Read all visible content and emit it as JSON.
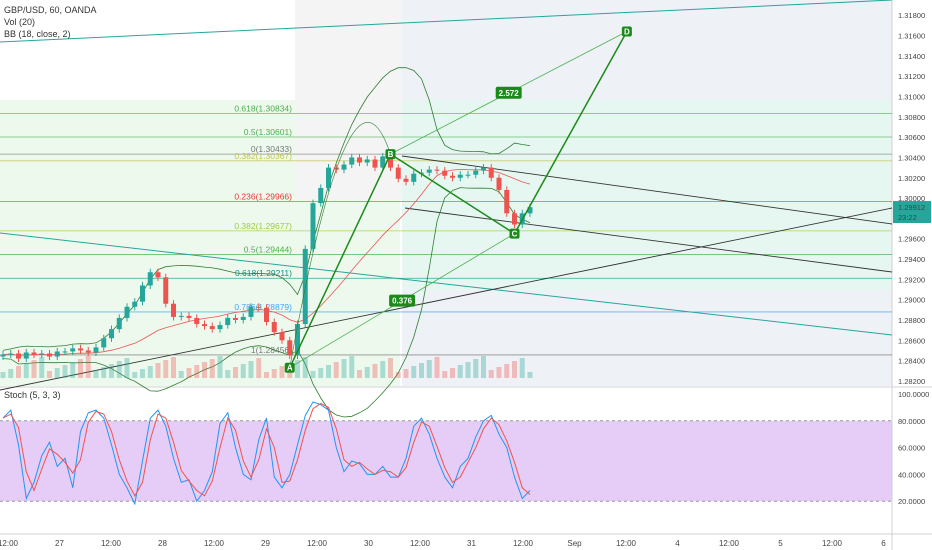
{
  "header": {
    "symbol": "GBP/USD, 60, OANDA",
    "vol": "Vol (20)",
    "bb": "BB (18, close, 2)",
    "stoch": "Stoch (5, 3, 3)"
  },
  "price_axis": {
    "ticks": [
      "1.31800",
      "1.31600",
      "1.31400",
      "1.31200",
      "1.31000",
      "1.30800",
      "1.30600",
      "1.30400",
      "1.30200",
      "1.30000",
      "1.29800",
      "1.29600",
      "1.29400",
      "1.29200",
      "1.29000",
      "1.28800",
      "1.28600",
      "1.28400",
      "1.28200"
    ],
    "current_price": "1.29912",
    "countdown": "23:22",
    "current_color": "#26a69a"
  },
  "stoch_axis": {
    "ticks": [
      "100.0000",
      "80.0000",
      "60.0000",
      "40.0000",
      "20.0000"
    ]
  },
  "time_axis": {
    "ticks": [
      "12:00",
      "27",
      "12:00",
      "28",
      "12:00",
      "29",
      "12:00",
      "30",
      "12:00",
      "31",
      "12:00",
      "Sep",
      "12:00",
      "4",
      "12:00",
      "5",
      "12:00",
      "6"
    ]
  },
  "fib_levels": [
    {
      "label": "0.618(1.30834)",
      "price": 1.30834,
      "color": "#4caf50"
    },
    {
      "label": "0.5(1.30601)",
      "price": 1.30601,
      "color": "#4caf50"
    },
    {
      "label": "0(1.30433)",
      "price": 1.30433,
      "color": "#777777"
    },
    {
      "label": "0.382(1.30367)",
      "price": 1.30367,
      "color": "#c5c44e"
    },
    {
      "label": "0.236(1.29966)",
      "price": 1.29966,
      "color": "#e53935"
    },
    {
      "label": "0.382(1.29677)",
      "price": 1.29677,
      "color": "#9ccc3a"
    },
    {
      "label": "0.5(1.29444)",
      "price": 1.29444,
      "color": "#4caf50"
    },
    {
      "label": "0.618(1.29211)",
      "price": 1.29211,
      "color": "#009688"
    },
    {
      "label": "0.786(1.28879)",
      "price": 1.28879,
      "color": "#42a5f5"
    },
    {
      "label": "1(1.28456)",
      "price": 1.28456,
      "color": "#777777"
    }
  ],
  "pattern": {
    "points": [
      {
        "name": "A",
        "t": 37.0,
        "p": 1.2833
      },
      {
        "name": "B",
        "t": 50.0,
        "p": 1.30433
      },
      {
        "name": "C",
        "t": 66.0,
        "p": 1.2965
      },
      {
        "name": "D",
        "t": 80.5,
        "p": 1.3164
      }
    ],
    "ratios": [
      "2.572",
      "0.376"
    ],
    "color": "#089981"
  },
  "chart_data": {
    "type": "candlestick",
    "title": "GBP/USD, 60, OANDA",
    "indicators": [
      "Vol (20)",
      "BB (18, close, 2)",
      "Stoch (5, 3, 3)"
    ],
    "price_range": [
      1.2815,
      1.3195
    ],
    "stoch_range": [
      0,
      100
    ],
    "last_price": 1.29912,
    "close_series": [
      1.2846,
      1.2847,
      1.2842,
      1.2848,
      1.2846,
      1.2847,
      1.2844,
      1.2849,
      1.2849,
      1.2852,
      1.285,
      1.2848,
      1.2853,
      1.2862,
      1.2871,
      1.2882,
      1.2893,
      1.2898,
      1.2914,
      1.2927,
      1.2922,
      1.2896,
      1.2883,
      1.2884,
      1.2882,
      1.2876,
      1.2874,
      1.2871,
      1.2875,
      1.2882,
      1.288,
      1.2883,
      1.2893,
      1.2892,
      1.2878,
      1.2868,
      1.286,
      1.2845,
      1.2876,
      1.295,
      1.2995,
      1.301,
      1.303,
      1.3028,
      1.3033,
      1.304,
      1.3035,
      1.3038,
      1.303,
      1.3041,
      1.303,
      1.3019,
      1.3016,
      1.3024,
      1.3025,
      1.3028,
      1.3027,
      1.3022,
      1.302,
      1.3023,
      1.3023,
      1.3027,
      1.303,
      1.302,
      1.3008,
      1.2985,
      1.2974,
      1.2985,
      1.2991
    ],
    "stoch_series": [
      82,
      88,
      62,
      22,
      34,
      54,
      64,
      46,
      52,
      30,
      72,
      86,
      88,
      82,
      62,
      40,
      30,
      18,
      50,
      82,
      88,
      76,
      52,
      34,
      36,
      20,
      28,
      42,
      78,
      86,
      60,
      40,
      36,
      66,
      82,
      38,
      30,
      40,
      62,
      84,
      94,
      92,
      88,
      60,
      42,
      50,
      48,
      40,
      40,
      46,
      38,
      38,
      52,
      76,
      82,
      70,
      52,
      38,
      30,
      46,
      52,
      68,
      80,
      84,
      70,
      60,
      38,
      22,
      28
    ]
  }
}
